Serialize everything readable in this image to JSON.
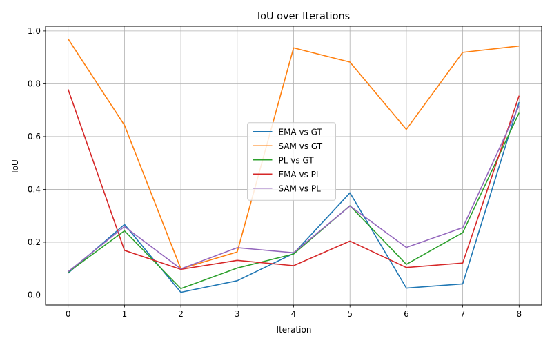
{
  "chart_data": {
    "type": "line",
    "title": "IoU over Iterations",
    "xlabel": "Iteration",
    "ylabel": "IoU",
    "x": [
      0,
      1,
      2,
      3,
      4,
      5,
      6,
      7,
      8
    ],
    "xticks": [
      "0",
      "1",
      "2",
      "3",
      "4",
      "5",
      "6",
      "7",
      "8"
    ],
    "yticks": [
      "0.0",
      "0.2",
      "0.4",
      "0.6",
      "0.8",
      "1.0"
    ],
    "xlim": [
      -0.4,
      8.4
    ],
    "ylim": [
      -0.038,
      1.018
    ],
    "grid": true,
    "legend_position": "center",
    "series": [
      {
        "name": "EMA vs GT",
        "color": "#1f77b4",
        "values": [
          0.083,
          0.267,
          0.01,
          0.054,
          0.157,
          0.387,
          0.026,
          0.042,
          0.73
        ]
      },
      {
        "name": "SAM vs GT",
        "color": "#ff7f0e",
        "values": [
          0.97,
          0.643,
          0.099,
          0.163,
          0.936,
          0.882,
          0.627,
          0.919,
          0.943
        ]
      },
      {
        "name": "PL vs GT",
        "color": "#2ca02c",
        "values": [
          0.086,
          0.243,
          0.024,
          0.102,
          0.155,
          0.338,
          0.116,
          0.236,
          0.69
        ]
      },
      {
        "name": "EMA vs PL",
        "color": "#d62728",
        "values": [
          0.779,
          0.169,
          0.097,
          0.131,
          0.111,
          0.204,
          0.104,
          0.121,
          0.755
        ]
      },
      {
        "name": "SAM vs PL",
        "color": "#9467bd",
        "values": [
          0.088,
          0.259,
          0.099,
          0.179,
          0.16,
          0.337,
          0.18,
          0.255,
          0.717
        ]
      }
    ]
  }
}
